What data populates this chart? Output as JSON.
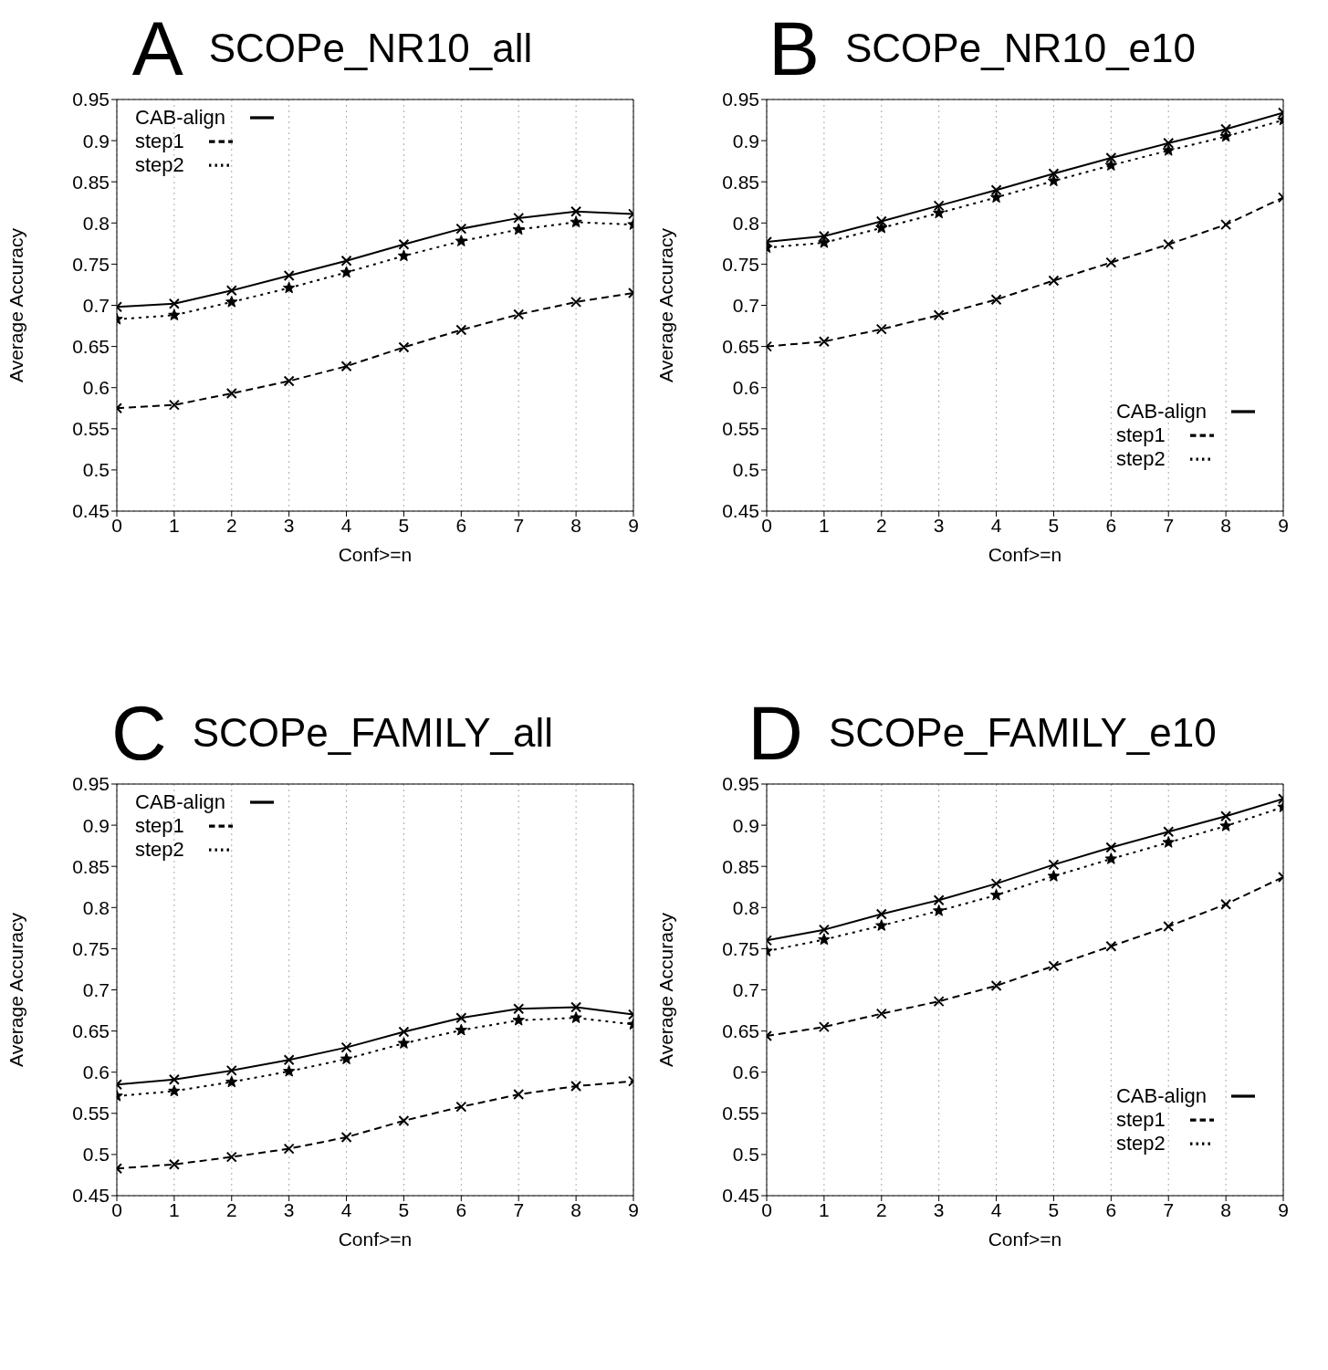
{
  "chart_data": [
    {
      "type": "line",
      "title": "SCOPe_NR10_all",
      "annotations": [
        "A"
      ],
      "xlabel": "Conf>=n",
      "ylabel": "Average Accuracy",
      "x": [
        0,
        1,
        2,
        3,
        4,
        5,
        6,
        7,
        8,
        9
      ],
      "xlim": [
        0,
        9
      ],
      "xticks": [
        0,
        1,
        2,
        3,
        4,
        5,
        6,
        7,
        8,
        9
      ],
      "ylim": [
        0.45,
        0.95
      ],
      "yticks": [
        0.45,
        0.5,
        0.55,
        0.6,
        0.65,
        0.7,
        0.75,
        0.8,
        0.85,
        0.9,
        0.95
      ],
      "grid": true,
      "legend": "top left",
      "series": [
        {
          "name": "CAB-align",
          "color": "#000000",
          "line_style": "solid",
          "marker": "cross",
          "values": [
            0.698,
            0.702,
            0.718,
            0.736,
            0.754,
            0.774,
            0.793,
            0.806,
            0.814,
            0.811
          ]
        },
        {
          "name": "step1",
          "color": "#000000",
          "line_style": "dashed",
          "marker": "cross",
          "values": [
            0.575,
            0.579,
            0.593,
            0.608,
            0.626,
            0.649,
            0.67,
            0.689,
            0.704,
            0.715
          ]
        },
        {
          "name": "step2",
          "color": "#000000",
          "line_style": "dotted",
          "marker": "star",
          "values": [
            0.683,
            0.688,
            0.704,
            0.721,
            0.74,
            0.76,
            0.778,
            0.792,
            0.801,
            0.798
          ]
        }
      ]
    },
    {
      "type": "line",
      "title": "SCOPe_NR10_e10",
      "annotations": [
        "B"
      ],
      "xlabel": "Conf>=n",
      "ylabel": "Average Accuracy",
      "x": [
        0,
        1,
        2,
        3,
        4,
        5,
        6,
        7,
        8,
        9
      ],
      "xlim": [
        0,
        9
      ],
      "xticks": [
        0,
        1,
        2,
        3,
        4,
        5,
        6,
        7,
        8,
        9
      ],
      "ylim": [
        0.45,
        0.95
      ],
      "yticks": [
        0.45,
        0.5,
        0.55,
        0.6,
        0.65,
        0.7,
        0.75,
        0.8,
        0.85,
        0.9,
        0.95
      ],
      "grid": true,
      "legend": "bottom right",
      "series": [
        {
          "name": "CAB-align",
          "color": "#000000",
          "line_style": "solid",
          "marker": "cross",
          "values": [
            0.777,
            0.784,
            0.802,
            0.821,
            0.84,
            0.86,
            0.879,
            0.897,
            0.914,
            0.934
          ]
        },
        {
          "name": "step1",
          "color": "#000000",
          "line_style": "dashed",
          "marker": "cross",
          "values": [
            0.65,
            0.656,
            0.671,
            0.688,
            0.707,
            0.73,
            0.752,
            0.774,
            0.798,
            0.831
          ]
        },
        {
          "name": "step2",
          "color": "#000000",
          "line_style": "dotted",
          "marker": "star",
          "values": [
            0.77,
            0.776,
            0.794,
            0.812,
            0.831,
            0.851,
            0.87,
            0.888,
            0.905,
            0.925
          ]
        }
      ]
    },
    {
      "type": "line",
      "title": "SCOPe_FAMILY_all",
      "annotations": [
        "C"
      ],
      "xlabel": "Conf>=n",
      "ylabel": "Average Accuracy",
      "x": [
        0,
        1,
        2,
        3,
        4,
        5,
        6,
        7,
        8,
        9
      ],
      "xlim": [
        0,
        9
      ],
      "xticks": [
        0,
        1,
        2,
        3,
        4,
        5,
        6,
        7,
        8,
        9
      ],
      "ylim": [
        0.45,
        0.95
      ],
      "yticks": [
        0.45,
        0.5,
        0.55,
        0.6,
        0.65,
        0.7,
        0.75,
        0.8,
        0.85,
        0.9,
        0.95
      ],
      "grid": true,
      "legend": "top left",
      "series": [
        {
          "name": "CAB-align",
          "color": "#000000",
          "line_style": "solid",
          "marker": "cross",
          "values": [
            0.585,
            0.591,
            0.602,
            0.615,
            0.63,
            0.649,
            0.666,
            0.677,
            0.679,
            0.67
          ]
        },
        {
          "name": "step1",
          "color": "#000000",
          "line_style": "dashed",
          "marker": "cross",
          "values": [
            0.483,
            0.488,
            0.497,
            0.507,
            0.521,
            0.541,
            0.558,
            0.573,
            0.583,
            0.589
          ]
        },
        {
          "name": "step2",
          "color": "#000000",
          "line_style": "dotted",
          "marker": "star",
          "values": [
            0.571,
            0.577,
            0.588,
            0.601,
            0.616,
            0.635,
            0.651,
            0.663,
            0.666,
            0.658
          ]
        }
      ]
    },
    {
      "type": "line",
      "title": "SCOPe_FAMILY_e10",
      "annotations": [
        "D"
      ],
      "xlabel": "Conf>=n",
      "ylabel": "Average Accuracy",
      "x": [
        0,
        1,
        2,
        3,
        4,
        5,
        6,
        7,
        8,
        9
      ],
      "xlim": [
        0,
        9
      ],
      "xticks": [
        0,
        1,
        2,
        3,
        4,
        5,
        6,
        7,
        8,
        9
      ],
      "ylim": [
        0.45,
        0.95
      ],
      "yticks": [
        0.45,
        0.5,
        0.55,
        0.6,
        0.65,
        0.7,
        0.75,
        0.8,
        0.85,
        0.9,
        0.95
      ],
      "grid": true,
      "legend": "bottom right",
      "series": [
        {
          "name": "CAB-align",
          "color": "#000000",
          "line_style": "solid",
          "marker": "cross",
          "values": [
            0.76,
            0.773,
            0.792,
            0.809,
            0.829,
            0.852,
            0.873,
            0.892,
            0.911,
            0.932
          ]
        },
        {
          "name": "step1",
          "color": "#000000",
          "line_style": "dashed",
          "marker": "cross",
          "values": [
            0.644,
            0.655,
            0.671,
            0.686,
            0.705,
            0.729,
            0.753,
            0.777,
            0.804,
            0.837
          ]
        },
        {
          "name": "step2",
          "color": "#000000",
          "line_style": "dotted",
          "marker": "star",
          "values": [
            0.747,
            0.761,
            0.778,
            0.796,
            0.815,
            0.838,
            0.859,
            0.879,
            0.899,
            0.922
          ]
        }
      ]
    }
  ]
}
